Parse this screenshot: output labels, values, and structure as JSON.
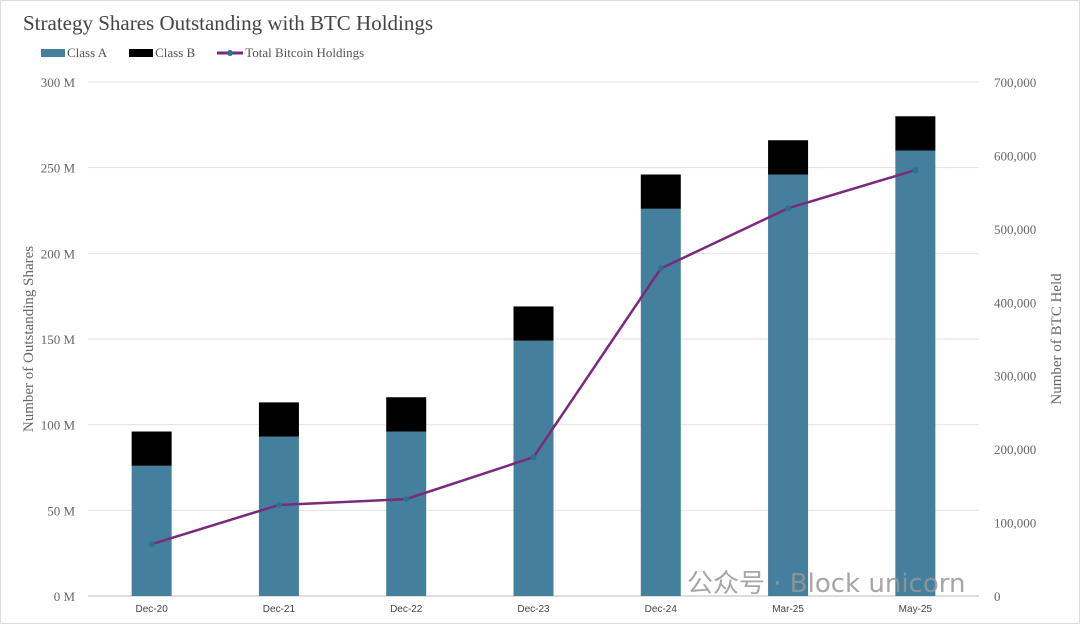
{
  "chart_data": {
    "type": "bar",
    "title": "Strategy Shares Outstanding with BTC Holdings",
    "categories": [
      "Dec-20",
      "Dec-21",
      "Dec-22",
      "Dec-23",
      "Dec-24",
      "Mar-25",
      "May-25"
    ],
    "series": [
      {
        "name": "Class A",
        "kind": "bar",
        "stack": "shares",
        "axis": "left",
        "color": "#44809e",
        "values": [
          76,
          93,
          96,
          149,
          226,
          246,
          260
        ]
      },
      {
        "name": "Class B",
        "kind": "bar",
        "stack": "shares",
        "axis": "left",
        "color": "#000000",
        "values": [
          20,
          20,
          20,
          20,
          20,
          20,
          20
        ]
      },
      {
        "name": "Total Bitcoin Holdings",
        "kind": "line",
        "axis": "right",
        "color": "#7b2a7b",
        "marker_color": "#2f6f8f",
        "values": [
          70500,
          124000,
          132000,
          189000,
          446000,
          528000,
          580000
        ]
      }
    ],
    "ylabel": "Number of Outstanding Shares",
    "y2label": "Number of BTC Held",
    "ylim": [
      0,
      300
    ],
    "y2lim": [
      0,
      700000
    ],
    "yticks": [
      "0 M",
      "50 M",
      "100 M",
      "150 M",
      "200 M",
      "250 M",
      "300 M"
    ],
    "y2ticks": [
      "0",
      "100,000",
      "200,000",
      "300,000",
      "400,000",
      "500,000",
      "600,000",
      "700,000"
    ],
    "legend": "top-left",
    "grid": true
  },
  "watermark": "公众号 · Block unicorn"
}
